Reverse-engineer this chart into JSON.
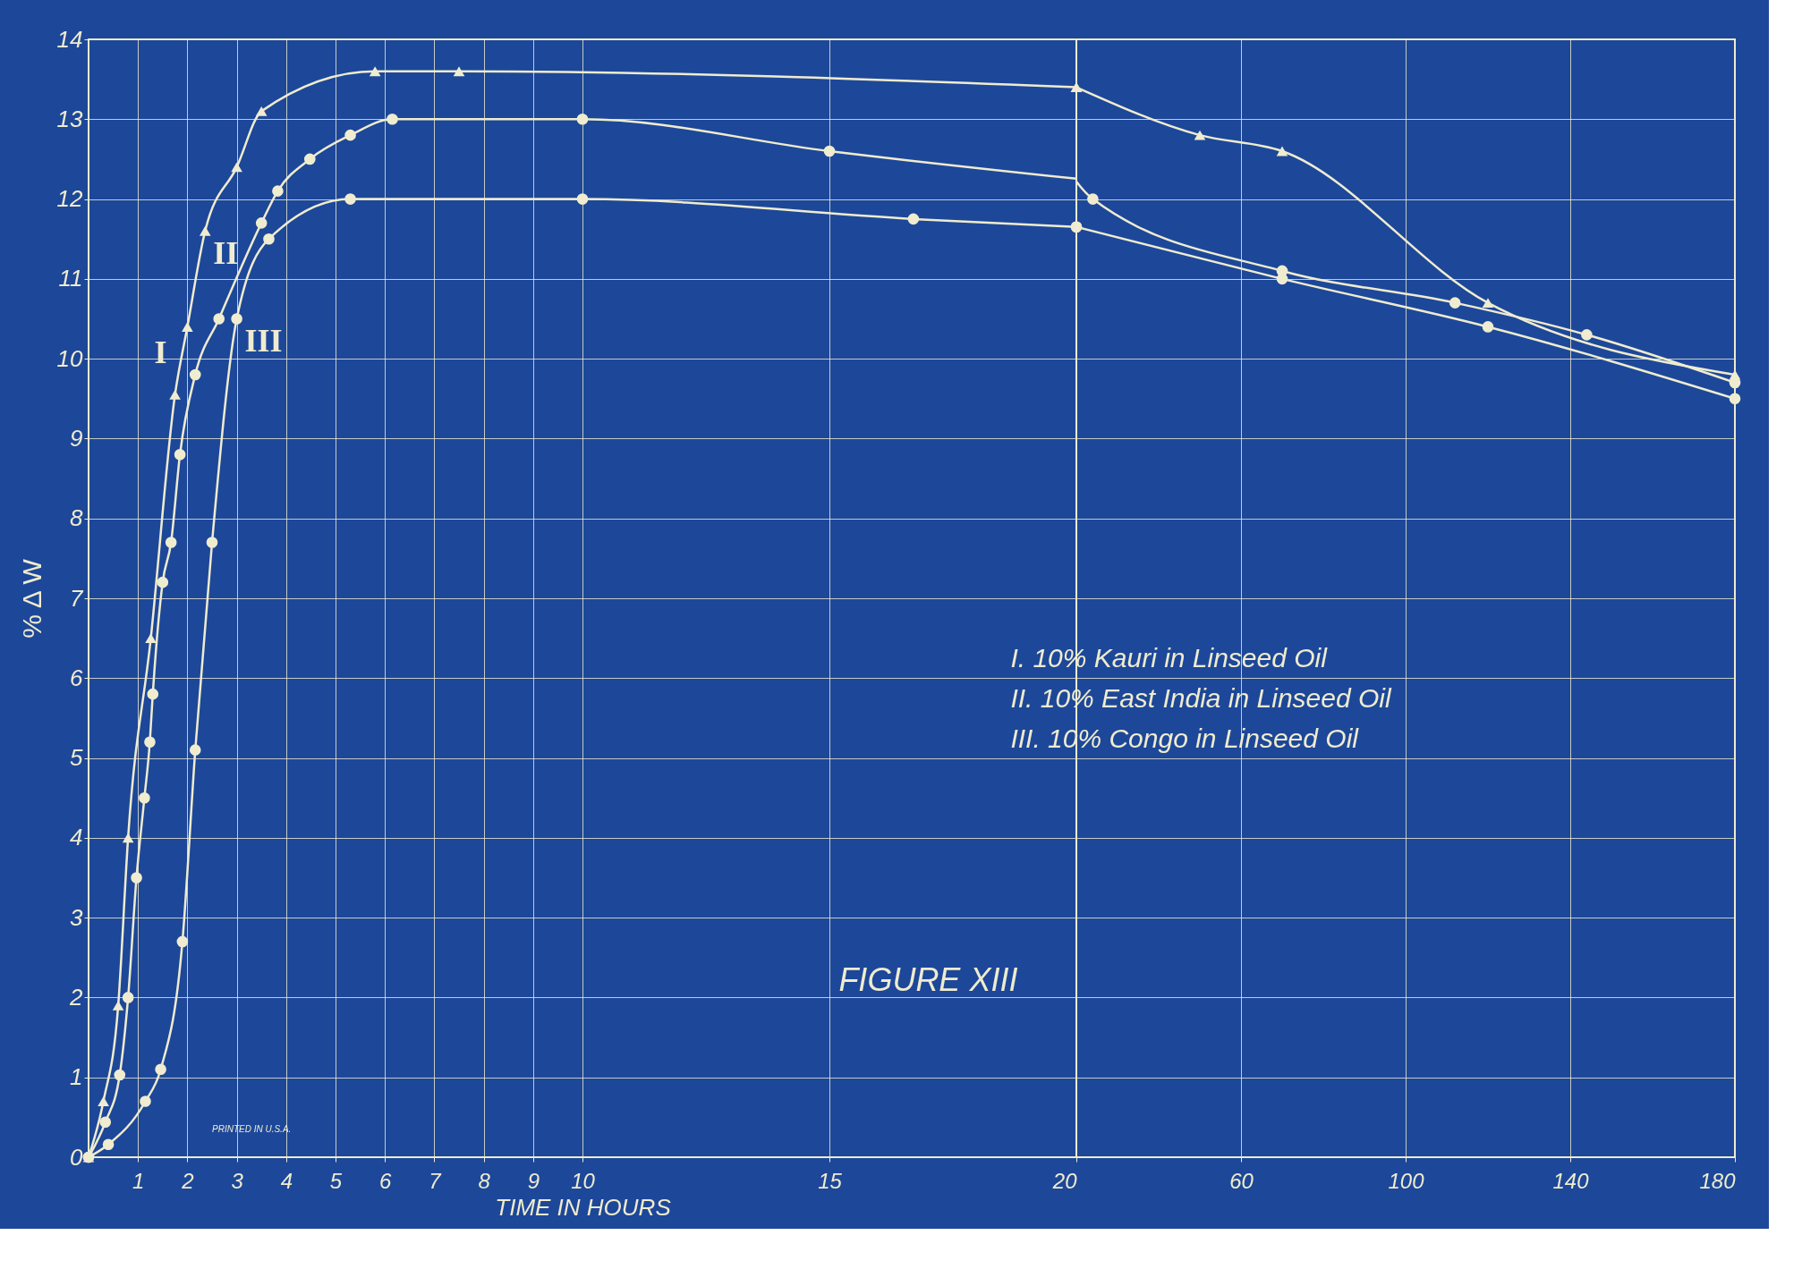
{
  "chart_data": [
    {
      "type": "line",
      "xlabel": "TIME IN HOURS",
      "ylabel": "% Δ W",
      "xlim": [
        0,
        20
      ],
      "ylim": [
        0,
        14
      ],
      "xticks": [
        1,
        2,
        3,
        4,
        5,
        6,
        7,
        8,
        9,
        10,
        15,
        20
      ],
      "yticks": [
        0,
        1,
        2,
        3,
        4,
        5,
        6,
        7,
        8,
        9,
        10,
        11,
        12,
        13,
        14
      ],
      "grid": true,
      "line_style": "solid",
      "legend": false,
      "series": [
        {
          "name": "I",
          "color": "#efeccf",
          "marker": "triangle",
          "x": [
            0,
            0.3,
            0.6,
            0.8,
            1.26,
            1.75,
            2.0,
            2.36,
            3.0,
            3.5,
            5.8,
            7.5,
            20
          ],
          "values": [
            0,
            0.7,
            1.9,
            4.0,
            6.5,
            9.55,
            10.4,
            11.6,
            12.4,
            13.1,
            13.6,
            13.6,
            13.4
          ]
        },
        {
          "name": "II",
          "color": "#efeccf",
          "marker": "circle",
          "x": [
            0,
            0.34,
            0.63,
            0.8,
            0.97,
            1.13,
            1.24,
            1.3,
            1.5,
            1.67,
            1.85,
            2.16,
            2.64,
            3.5,
            3.83,
            4.48,
            5.3,
            6.15,
            10,
            15
          ],
          "values": [
            0,
            0.44,
            1.03,
            2.0,
            3.5,
            4.5,
            5.2,
            5.8,
            7.2,
            7.7,
            8.8,
            9.8,
            10.5,
            11.7,
            12.1,
            12.5,
            12.8,
            13.0,
            13.0,
            12.6
          ]
        },
        {
          "name": "III",
          "color": "#efeccf",
          "marker": "circle",
          "x": [
            0,
            0.4,
            1.15,
            1.46,
            1.9,
            2.16,
            2.5,
            3.0,
            3.65,
            5.3,
            10,
            16.7,
            20
          ],
          "values": [
            0,
            0.16,
            0.7,
            1.1,
            2.7,
            5.1,
            7.7,
            10.5,
            11.5,
            12.0,
            12.0,
            11.75,
            11.65
          ]
        }
      ],
      "annotations": [
        "I. 10% Kauri in Linseed Oil",
        "II. 10% East India in Linseed Oil",
        "III. 10% Congo in Linseed Oil",
        "FIGURE XIII",
        "PRINTED IN U.S.A."
      ]
    },
    {
      "type": "line",
      "xlim": [
        20,
        180
      ],
      "ylim": [
        0,
        14
      ],
      "xticks": [
        60,
        100,
        140,
        180
      ],
      "yticks": [
        0,
        1,
        2,
        3,
        4,
        5,
        6,
        7,
        8,
        9,
        10,
        11,
        12,
        13,
        14
      ],
      "grid": true,
      "line_style": "solid",
      "tick_labels": "x",
      "series": [
        {
          "color": "#efeccf",
          "marker": "triangle",
          "x": [
            20,
            50,
            70,
            120,
            180
          ],
          "values": [
            13.4,
            12.8,
            12.6,
            10.7,
            9.8
          ]
        },
        {
          "color": "#efeccf",
          "marker": "circle",
          "x": [
            24,
            70,
            112,
            144,
            180
          ],
          "values": [
            12.0,
            11.1,
            10.7,
            10.3,
            9.7
          ]
        },
        {
          "color": "#efeccf",
          "marker": "circle",
          "x": [
            20,
            70,
            120,
            180
          ],
          "values": [
            11.65,
            11.0,
            10.4,
            9.5
          ]
        }
      ]
    }
  ]
}
